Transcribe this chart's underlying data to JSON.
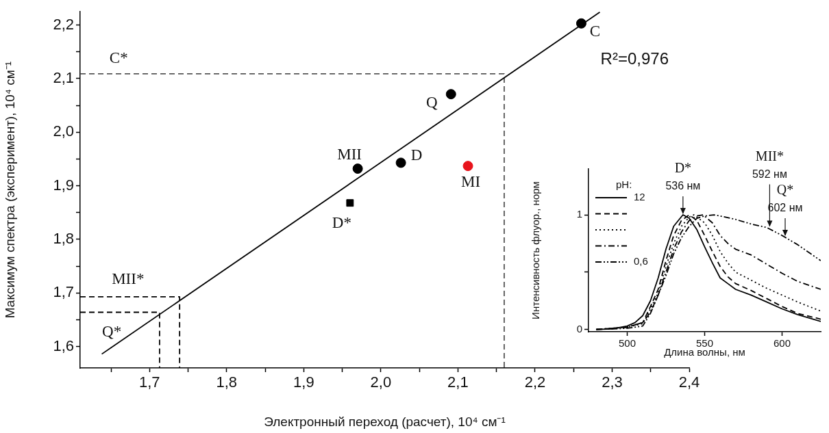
{
  "chart_data": [
    {
      "type": "scatter",
      "xlabel": "Электронный переход (расчет), 10⁴ см⁻¹",
      "ylabel": "Максимум спектра (эксперимент), 10⁴ см⁻¹",
      "xlim": [
        1.61,
        2.4
      ],
      "ylim": [
        1.56,
        2.225
      ],
      "xticks": [
        {
          "value": 1.65,
          "label": null
        },
        {
          "value": 1.7,
          "label": "1,7"
        },
        {
          "value": 1.75,
          "label": null
        },
        {
          "value": 1.8,
          "label": "1,8"
        },
        {
          "value": 1.85,
          "label": null
        },
        {
          "value": 1.9,
          "label": "1,9"
        },
        {
          "value": 1.95,
          "label": null
        },
        {
          "value": 2.0,
          "label": "2,0"
        },
        {
          "value": 2.05,
          "label": null
        },
        {
          "value": 2.1,
          "label": "2,1"
        },
        {
          "value": 2.15,
          "label": null
        },
        {
          "value": 2.2,
          "label": "2,2"
        },
        {
          "value": 2.25,
          "label": null
        },
        {
          "value": 2.3,
          "label": "2,3"
        },
        {
          "value": 2.35,
          "label": null
        },
        {
          "value": 2.4,
          "label": "2,4"
        }
      ],
      "yticks": [
        {
          "value": 1.6,
          "label": "1,6"
        },
        {
          "value": 1.65,
          "label": null
        },
        {
          "value": 1.7,
          "label": "1,7"
        },
        {
          "value": 1.75,
          "label": null
        },
        {
          "value": 1.8,
          "label": "1,8"
        },
        {
          "value": 1.85,
          "label": null
        },
        {
          "value": 1.9,
          "label": "1,9"
        },
        {
          "value": 1.95,
          "label": null
        },
        {
          "value": 2.0,
          "label": "2,0"
        },
        {
          "value": 2.05,
          "label": null
        },
        {
          "value": 2.1,
          "label": "2,1"
        },
        {
          "value": 2.15,
          "label": null
        },
        {
          "value": 2.2,
          "label": "2,2"
        }
      ],
      "grid": false,
      "legend": false,
      "series": [
        {
          "type": "line",
          "x": [
            1.638,
            2.284
          ],
          "values": [
            1.586,
            2.224
          ],
          "color": "#000000",
          "line_style": "solid",
          "marker": "none"
        },
        {
          "type": "line",
          "x": [
            1.61,
            2.16,
            2.16
          ],
          "values": [
            2.109,
            2.109,
            1.56
          ],
          "color": "#555555",
          "line_style": "dashed",
          "marker": "none"
        },
        {
          "type": "line",
          "x": [
            1.61,
            1.739,
            1.739
          ],
          "values": [
            1.693,
            1.693,
            1.56
          ],
          "color": "#000000",
          "line_style": "dashed",
          "marker": "none"
        },
        {
          "type": "line",
          "x": [
            1.61,
            1.713,
            1.713
          ],
          "values": [
            1.664,
            1.664,
            1.56
          ],
          "color": "#000000",
          "line_style": "dashed",
          "marker": "none"
        },
        {
          "type": "scatter",
          "x": [
            2.26,
            2.091,
            2.026,
            1.97
          ],
          "values": [
            2.203,
            2.071,
            1.943,
            1.932
          ],
          "color": "#000000",
          "marker": "circle"
        },
        {
          "type": "scatter",
          "x": [
            1.96
          ],
          "values": [
            1.868
          ],
          "color": "#000000",
          "marker": "square"
        },
        {
          "type": "scatter",
          "x": [
            2.113
          ],
          "values": [
            1.937
          ],
          "color": "#e8141c",
          "marker": "circle"
        }
      ],
      "annotations": [
        {
          "text": "C",
          "x": 2.26,
          "y": 2.203
        },
        {
          "text": "Q",
          "x": 2.091,
          "y": 2.071
        },
        {
          "text": "D",
          "x": 2.026,
          "y": 1.943
        },
        {
          "text": "MII",
          "x": 1.97,
          "y": 1.932
        },
        {
          "text": "D*",
          "x": 1.96,
          "y": 1.868
        },
        {
          "text": "MI",
          "x": 2.113,
          "y": 1.937
        },
        {
          "text": "C*",
          "x": 1.66,
          "y": 2.109
        },
        {
          "text": "MII*",
          "x": 1.672,
          "y": 1.693
        },
        {
          "text": "Q*",
          "x": 1.651,
          "y": 1.664
        },
        "R²=0,976"
      ]
    },
    {
      "type": "line",
      "xlabel": "Длина волны, нм",
      "ylabel": "Интенсивность флуор., норм",
      "xlim": [
        475,
        625
      ],
      "ylim": [
        -0.02,
        1.4
      ],
      "xticks": [
        500,
        550,
        600
      ],
      "yticks": [
        0,
        {
          "value": 0.5,
          "label": null
        },
        1
      ],
      "grid": false,
      "legend": "top left",
      "legend_title": "pH:",
      "marker": "none",
      "series": [
        {
          "name": "12",
          "color": "#000000",
          "line_style": "solid",
          "x": [
            480,
            490,
            500,
            505,
            510,
            515,
            520,
            525,
            530,
            536,
            540,
            545,
            550,
            555,
            560,
            565,
            570,
            580,
            590,
            600,
            610,
            625
          ],
          "values": [
            0,
            0.005,
            0.03,
            0.06,
            0.12,
            0.25,
            0.45,
            0.7,
            0.9,
            1.0,
            0.97,
            0.87,
            0.72,
            0.58,
            0.45,
            0.4,
            0.35,
            0.3,
            0.24,
            0.18,
            0.13,
            0.07
          ]
        },
        {
          "color": "#000000",
          "line_style": "dashed",
          "x": [
            480,
            500,
            510,
            515,
            520,
            525,
            530,
            535,
            540,
            545,
            550,
            555,
            560,
            565,
            570,
            580,
            590,
            600,
            610,
            625
          ],
          "values": [
            0,
            0.02,
            0.06,
            0.2,
            0.35,
            0.6,
            0.82,
            0.95,
            1.0,
            0.95,
            0.82,
            0.68,
            0.55,
            0.46,
            0.4,
            0.34,
            0.27,
            0.2,
            0.14,
            0.09
          ]
        },
        {
          "color": "#000000",
          "line_style": "dotted",
          "x": [
            480,
            500,
            510,
            515,
            520,
            525,
            530,
            535,
            540,
            543,
            550,
            555,
            560,
            565,
            570,
            580,
            590,
            600,
            610,
            625
          ],
          "values": [
            0,
            0.02,
            0.05,
            0.18,
            0.32,
            0.55,
            0.75,
            0.9,
            0.98,
            1.0,
            0.93,
            0.82,
            0.68,
            0.58,
            0.5,
            0.43,
            0.36,
            0.3,
            0.24,
            0.16
          ]
        },
        {
          "color": "#000000",
          "line_style": "dashdot",
          "x": [
            480,
            500,
            510,
            515,
            520,
            525,
            530,
            535,
            540,
            545,
            549,
            555,
            560,
            565,
            570,
            580,
            590,
            600,
            610,
            625
          ],
          "values": [
            0,
            0.02,
            0.06,
            0.15,
            0.3,
            0.5,
            0.7,
            0.85,
            0.95,
            0.99,
            1.0,
            0.93,
            0.82,
            0.75,
            0.7,
            0.65,
            0.57,
            0.49,
            0.42,
            0.35
          ]
        },
        {
          "name": "0,6",
          "color": "#000000",
          "line_style": "dashdotdot",
          "x": [
            480,
            500,
            510,
            515,
            520,
            525,
            530,
            535,
            540,
            545,
            550,
            556,
            560,
            570,
            580,
            590,
            600,
            610,
            625
          ],
          "values": [
            0,
            0.01,
            0.03,
            0.14,
            0.3,
            0.47,
            0.66,
            0.8,
            0.9,
            0.97,
            0.99,
            1.0,
            0.99,
            0.96,
            0.92,
            0.89,
            0.82,
            0.74,
            0.6
          ]
        }
      ],
      "annotations": [
        "D*",
        {
          "text": "536 нм",
          "x": 536,
          "y": 1.0
        },
        "MII*",
        {
          "text": "592 нм",
          "x": 592,
          "y": 0.89
        },
        "Q*",
        {
          "text": "602 нм",
          "x": 602,
          "y": 0.81
        }
      ]
    }
  ]
}
